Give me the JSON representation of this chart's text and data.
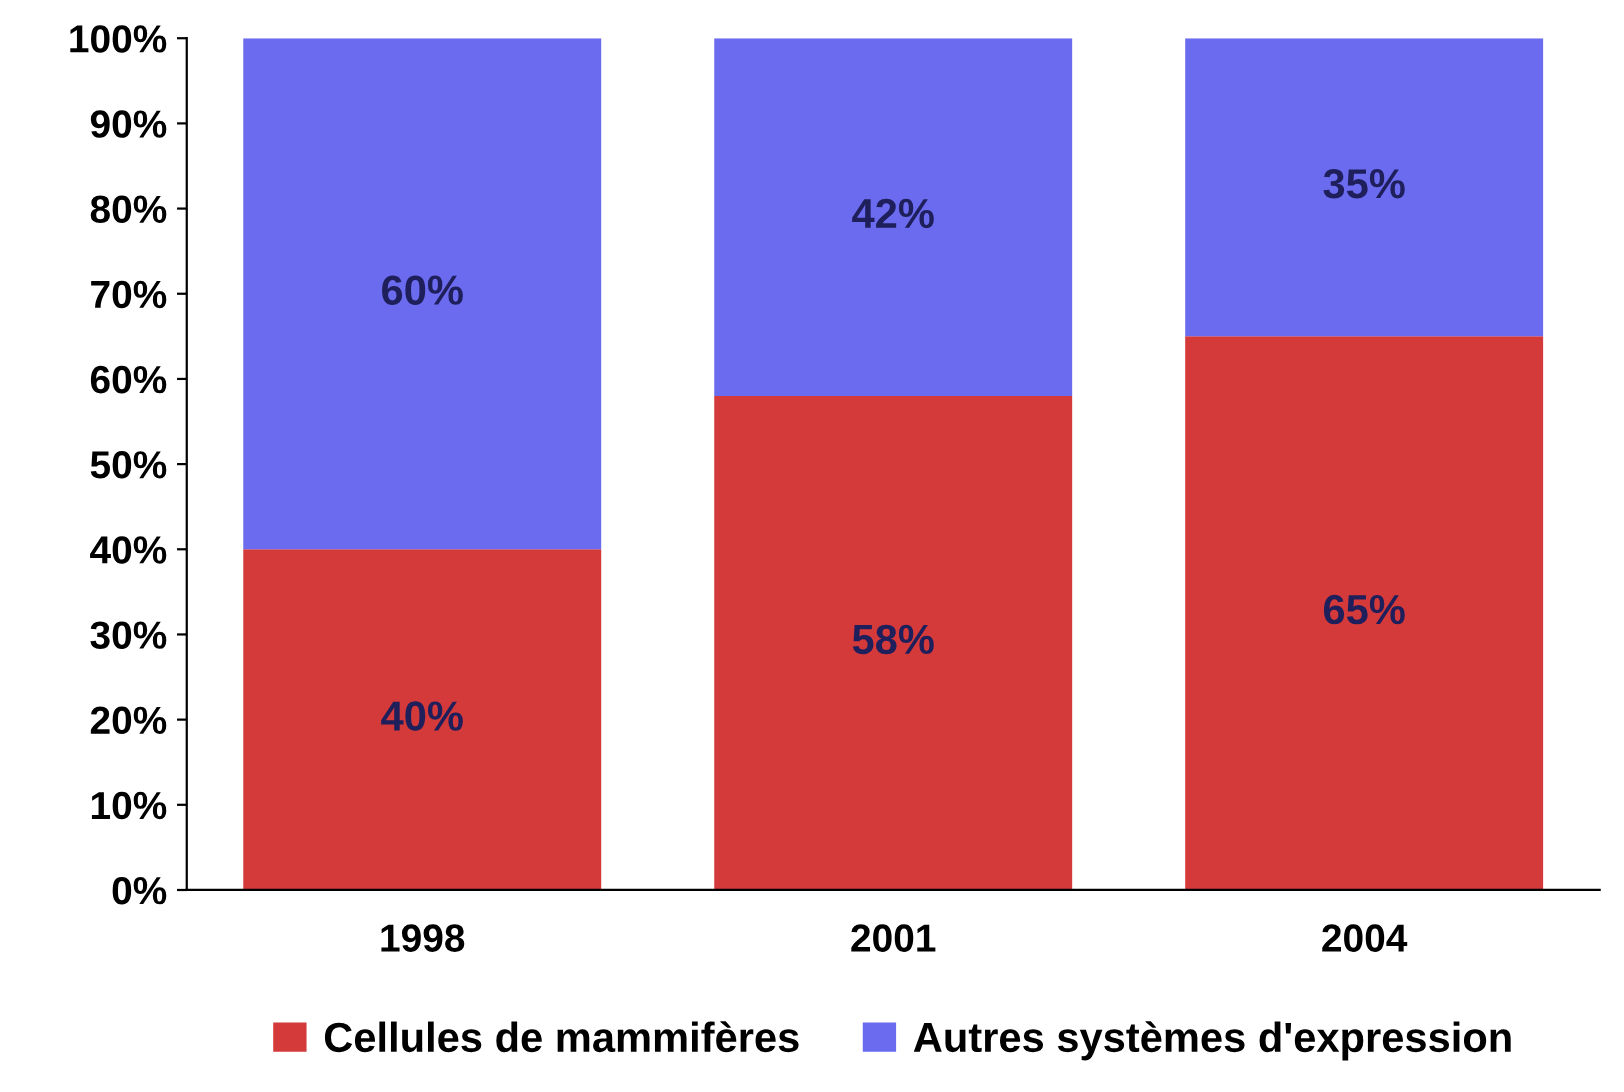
{
  "chart_data": {
    "type": "bar",
    "stacked": true,
    "categories": [
      "1998",
      "2001",
      "2004"
    ],
    "series": [
      {
        "name": "Cellules de mammifères",
        "color": "#d43a3a",
        "values": [
          40,
          58,
          65
        ],
        "value_labels": [
          "40%",
          "58%",
          "65%"
        ]
      },
      {
        "name": "Autres systèmes d'expression",
        "color": "#6b6bf0",
        "values": [
          60,
          42,
          35
        ],
        "value_labels": [
          "60%",
          "42%",
          "35%"
        ]
      }
    ],
    "ylim": [
      0,
      100
    ],
    "yticks": [
      {
        "value": 0,
        "label": "0%"
      },
      {
        "value": 10,
        "label": "10%"
      },
      {
        "value": 20,
        "label": "20%"
      },
      {
        "value": 30,
        "label": "30%"
      },
      {
        "value": 40,
        "label": "40%"
      },
      {
        "value": 50,
        "label": "50%"
      },
      {
        "value": 60,
        "label": "60%"
      },
      {
        "value": 70,
        "label": "70%"
      },
      {
        "value": 80,
        "label": "80%"
      },
      {
        "value": 90,
        "label": "90%"
      },
      {
        "value": 100,
        "label": "100%"
      }
    ],
    "grid": false,
    "legend": "bottom"
  }
}
